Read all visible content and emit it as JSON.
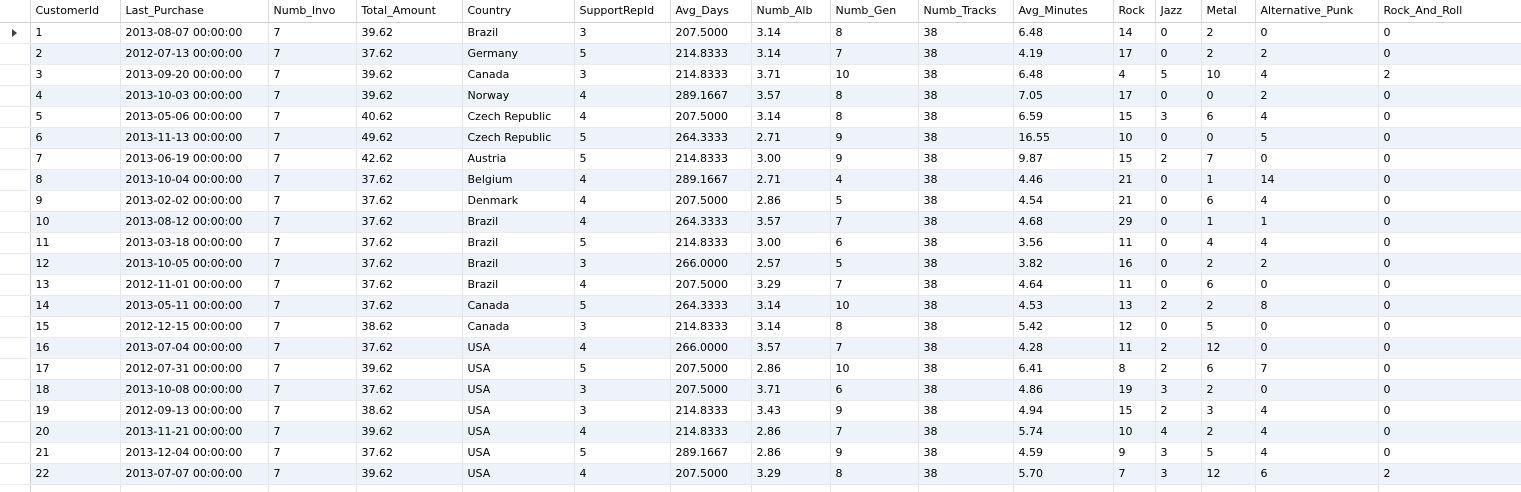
{
  "grid": {
    "columns": [
      "CustomerId",
      "Last_Purchase",
      "Numb_Invo",
      "Total_Amount",
      "Country",
      "SupportRepId",
      "Avg_Days",
      "Numb_Alb",
      "Numb_Gen",
      "Numb_Tracks",
      "Avg_Minutes",
      "Rock",
      "Jazz",
      "Metal",
      "Alternative_Punk",
      "Rock_And_Roll"
    ],
    "current_row_index": 0,
    "current_row_icon": "current-row-arrow-icon",
    "rows": [
      [
        "1",
        "2013-08-07 00:00:00",
        "7",
        "39.62",
        "Brazil",
        "3",
        "207.5000",
        "3.14",
        "8",
        "38",
        "6.48",
        "14",
        "0",
        "2",
        "0",
        "0"
      ],
      [
        "2",
        "2012-07-13 00:00:00",
        "7",
        "37.62",
        "Germany",
        "5",
        "214.8333",
        "3.14",
        "7",
        "38",
        "4.19",
        "17",
        "0",
        "2",
        "2",
        "0"
      ],
      [
        "3",
        "2013-09-20 00:00:00",
        "7",
        "39.62",
        "Canada",
        "3",
        "214.8333",
        "3.71",
        "10",
        "38",
        "6.48",
        "4",
        "5",
        "10",
        "4",
        "2"
      ],
      [
        "4",
        "2013-10-03 00:00:00",
        "7",
        "39.62",
        "Norway",
        "4",
        "289.1667",
        "3.57",
        "8",
        "38",
        "7.05",
        "17",
        "0",
        "0",
        "2",
        "0"
      ],
      [
        "5",
        "2013-05-06 00:00:00",
        "7",
        "40.62",
        "Czech Republic",
        "4",
        "207.5000",
        "3.14",
        "8",
        "38",
        "6.59",
        "15",
        "3",
        "6",
        "4",
        "0"
      ],
      [
        "6",
        "2013-11-13 00:00:00",
        "7",
        "49.62",
        "Czech Republic",
        "5",
        "264.3333",
        "2.71",
        "9",
        "38",
        "16.55",
        "10",
        "0",
        "0",
        "5",
        "0"
      ],
      [
        "7",
        "2013-06-19 00:00:00",
        "7",
        "42.62",
        "Austria",
        "5",
        "214.8333",
        "3.00",
        "9",
        "38",
        "9.87",
        "15",
        "2",
        "7",
        "0",
        "0"
      ],
      [
        "8",
        "2013-10-04 00:00:00",
        "7",
        "37.62",
        "Belgium",
        "4",
        "289.1667",
        "2.71",
        "4",
        "38",
        "4.46",
        "21",
        "0",
        "1",
        "14",
        "0"
      ],
      [
        "9",
        "2013-02-02 00:00:00",
        "7",
        "37.62",
        "Denmark",
        "4",
        "207.5000",
        "2.86",
        "5",
        "38",
        "4.54",
        "21",
        "0",
        "6",
        "4",
        "0"
      ],
      [
        "10",
        "2013-08-12 00:00:00",
        "7",
        "37.62",
        "Brazil",
        "4",
        "264.3333",
        "3.57",
        "7",
        "38",
        "4.68",
        "29",
        "0",
        "1",
        "1",
        "0"
      ],
      [
        "11",
        "2013-03-18 00:00:00",
        "7",
        "37.62",
        "Brazil",
        "5",
        "214.8333",
        "3.00",
        "6",
        "38",
        "3.56",
        "11",
        "0",
        "4",
        "4",
        "0"
      ],
      [
        "12",
        "2013-10-05 00:00:00",
        "7",
        "37.62",
        "Brazil",
        "3",
        "266.0000",
        "2.57",
        "5",
        "38",
        "3.82",
        "16",
        "0",
        "2",
        "2",
        "0"
      ],
      [
        "13",
        "2012-11-01 00:00:00",
        "7",
        "37.62",
        "Brazil",
        "4",
        "207.5000",
        "3.29",
        "7",
        "38",
        "4.64",
        "11",
        "0",
        "6",
        "0",
        "0"
      ],
      [
        "14",
        "2013-05-11 00:00:00",
        "7",
        "37.62",
        "Canada",
        "5",
        "264.3333",
        "3.14",
        "10",
        "38",
        "4.53",
        "13",
        "2",
        "2",
        "8",
        "0"
      ],
      [
        "15",
        "2012-12-15 00:00:00",
        "7",
        "38.62",
        "Canada",
        "3",
        "214.8333",
        "3.14",
        "8",
        "38",
        "5.42",
        "12",
        "0",
        "5",
        "0",
        "0"
      ],
      [
        "16",
        "2013-07-04 00:00:00",
        "7",
        "37.62",
        "USA",
        "4",
        "266.0000",
        "3.57",
        "7",
        "38",
        "4.28",
        "11",
        "2",
        "12",
        "0",
        "0"
      ],
      [
        "17",
        "2012-07-31 00:00:00",
        "7",
        "39.62",
        "USA",
        "5",
        "207.5000",
        "2.86",
        "10",
        "38",
        "6.41",
        "8",
        "2",
        "6",
        "7",
        "0"
      ],
      [
        "18",
        "2013-10-08 00:00:00",
        "7",
        "37.62",
        "USA",
        "3",
        "207.5000",
        "3.71",
        "6",
        "38",
        "4.86",
        "19",
        "3",
        "2",
        "0",
        "0"
      ],
      [
        "19",
        "2012-09-13 00:00:00",
        "7",
        "38.62",
        "USA",
        "3",
        "214.8333",
        "3.43",
        "9",
        "38",
        "4.94",
        "15",
        "2",
        "3",
        "4",
        "0"
      ],
      [
        "20",
        "2013-11-21 00:00:00",
        "7",
        "39.62",
        "USA",
        "4",
        "214.8333",
        "2.86",
        "7",
        "38",
        "5.74",
        "10",
        "4",
        "2",
        "4",
        "0"
      ],
      [
        "21",
        "2013-12-04 00:00:00",
        "7",
        "37.62",
        "USA",
        "5",
        "289.1667",
        "2.86",
        "9",
        "38",
        "4.59",
        "9",
        "3",
        "5",
        "4",
        "0"
      ],
      [
        "22",
        "2013-07-07 00:00:00",
        "7",
        "39.62",
        "USA",
        "4",
        "207.5000",
        "3.29",
        "8",
        "38",
        "5.70",
        "7",
        "3",
        "12",
        "6",
        "2"
      ]
    ]
  }
}
